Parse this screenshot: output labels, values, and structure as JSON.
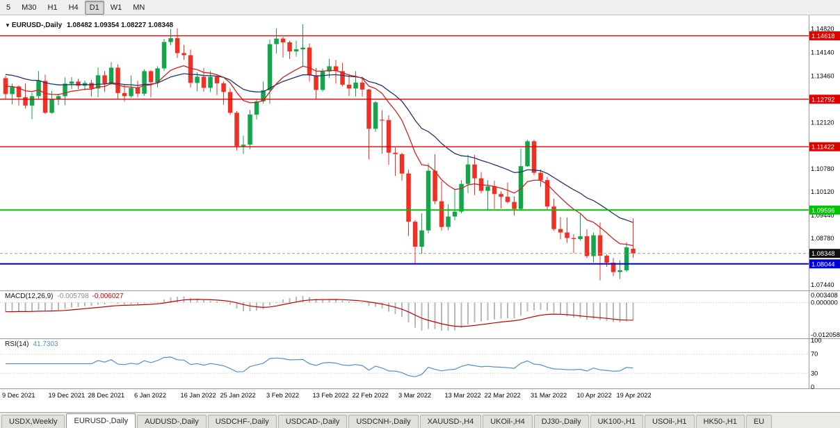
{
  "toolbar": {
    "timeframes": [
      "5",
      "M30",
      "H1",
      "H4",
      "D1",
      "W1",
      "MN"
    ],
    "active": "D1"
  },
  "chart": {
    "marker": "▼",
    "symbol_label": "EURUSD-,Daily",
    "ohlc_text": "1.08482 1.09354 1.08227 1.08348"
  },
  "chart_data": {
    "type": "candlestick",
    "symbol": "EURUSD",
    "timeframe": "Daily",
    "last_bar": {
      "open": 1.08482,
      "high": 1.09354,
      "low": 1.08227,
      "close": 1.08348
    },
    "price_scale": {
      "min": 1.073,
      "max": 1.1505
    },
    "y_axis_ticks": [
      {
        "value": 1.1482,
        "label": "1.14820"
      },
      {
        "value": 1.1414,
        "label": "1.14140"
      },
      {
        "value": 1.1346,
        "label": "1.13460"
      },
      {
        "value": 1.1212,
        "label": "1.12120"
      },
      {
        "value": 1.1078,
        "label": "1.10780"
      },
      {
        "value": 1.1012,
        "label": "1.10120"
      },
      {
        "value": 1.0944,
        "label": "1.09440"
      },
      {
        "value": 1.0878,
        "label": "1.08780"
      },
      {
        "value": 1.0744,
        "label": "1.07440"
      }
    ],
    "hlines": [
      {
        "price": 1.14618,
        "label": "1.14618",
        "color": "#e00000",
        "width": 1.4,
        "name": "resistance-line-1"
      },
      {
        "price": 1.12792,
        "label": "1.12792",
        "color": "#e00000",
        "width": 1.4,
        "name": "resistance-line-2"
      },
      {
        "price": 1.11422,
        "label": "1.11422",
        "color": "#e00000",
        "width": 1.4,
        "name": "resistance-line-3"
      },
      {
        "price": 1.09596,
        "label": "1.09596",
        "color": "#00c400",
        "width": 2,
        "name": "support-line-green"
      },
      {
        "price": 1.08044,
        "label": "1.08044",
        "color": "#0000dc",
        "width": 2,
        "name": "support-line-blue"
      }
    ],
    "current_price": {
      "value": 1.08348,
      "label": "1.08348",
      "badge_color": "#111111"
    },
    "x_axis_labels": [
      {
        "i": 0,
        "label": "9 Dec 2021"
      },
      {
        "i": 7,
        "label": "19 Dec 2021"
      },
      {
        "i": 13,
        "label": "28 Dec 2021"
      },
      {
        "i": 20,
        "label": "6 Jan 2022"
      },
      {
        "i": 27,
        "label": "16 Jan 2022"
      },
      {
        "i": 33,
        "label": "25 Jan 2022"
      },
      {
        "i": 40,
        "label": "3 Feb 2022"
      },
      {
        "i": 47,
        "label": "13 Feb 2022"
      },
      {
        "i": 53,
        "label": "22 Feb 2022"
      },
      {
        "i": 60,
        "label": "3 Mar 2022"
      },
      {
        "i": 67,
        "label": "13 Mar 2022"
      },
      {
        "i": 73,
        "label": "22 Mar 2022"
      },
      {
        "i": 80,
        "label": "31 Mar 2022"
      },
      {
        "i": 87,
        "label": "10 Apr 2022"
      },
      {
        "i": 93,
        "label": "19 Apr 2022"
      }
    ],
    "ma": {
      "fast": 12,
      "slow": 26,
      "fast_seed": 1.132,
      "slow_seed": 1.1355
    },
    "macd": {
      "label": "MACD(12,26,9)",
      "value_main": "-0.005798",
      "value_signal": "-0.006027",
      "axis": [
        {
          "value": 0.003408,
          "label": "0.003408"
        },
        {
          "value": 0,
          "label": "0.000000"
        },
        {
          "value": -0.012058,
          "label": "-0.012058"
        }
      ]
    },
    "rsi": {
      "label": "RSI(14)",
      "value": "41.7303",
      "axis": [
        {
          "value": 100,
          "label": "100"
        },
        {
          "value": 70,
          "label": "70"
        },
        {
          "value": 30,
          "label": "30"
        },
        {
          "value": 0,
          "label": "0"
        }
      ],
      "levels": [
        70,
        30
      ]
    },
    "colors": {
      "up": "#14a44a",
      "down": "#ee3124",
      "ma_fast": "#d02020",
      "ma_slow": "#1f3370",
      "macd_hist": "#b8b8b8",
      "macd_signal": "#c00000",
      "rsi": "#4f8fd0"
    },
    "candles": [
      [
        "2021-12-09",
        1.134,
        1.1347,
        1.1278,
        1.1294
      ],
      [
        "2021-12-10",
        1.1294,
        1.1324,
        1.1264,
        1.1316
      ],
      [
        "2021-12-13",
        1.1316,
        1.1319,
        1.126,
        1.1285
      ],
      [
        "2021-12-14",
        1.1285,
        1.1325,
        1.1252,
        1.1261
      ],
      [
        "2021-12-15",
        1.1261,
        1.1298,
        1.1222,
        1.1288
      ],
      [
        "2021-12-16",
        1.1288,
        1.136,
        1.128,
        1.1332
      ],
      [
        "2021-12-17",
        1.1332,
        1.135,
        1.1236,
        1.124
      ],
      [
        "2021-12-20",
        1.124,
        1.1303,
        1.1237,
        1.1278
      ],
      [
        "2021-12-21",
        1.1278,
        1.1295,
        1.1262,
        1.1288
      ],
      [
        "2021-12-22",
        1.1288,
        1.1342,
        1.1262,
        1.1324
      ],
      [
        "2021-12-23",
        1.1324,
        1.1343,
        1.1308,
        1.133
      ],
      [
        "2021-12-24",
        1.133,
        1.1338,
        1.1308,
        1.1318
      ],
      [
        "2021-12-27",
        1.1318,
        1.1333,
        1.1304,
        1.1326
      ],
      [
        "2021-12-28",
        1.1326,
        1.1335,
        1.1287,
        1.131
      ],
      [
        "2021-12-29",
        1.131,
        1.137,
        1.1285,
        1.1348
      ],
      [
        "2021-12-30",
        1.1348,
        1.136,
        1.13,
        1.1324
      ],
      [
        "2021-12-31",
        1.1324,
        1.1386,
        1.132,
        1.137
      ],
      [
        "2022-01-03",
        1.137,
        1.1379,
        1.1279,
        1.1297
      ],
      [
        "2022-01-04",
        1.1297,
        1.1323,
        1.1272,
        1.1288
      ],
      [
        "2022-01-05",
        1.1288,
        1.1347,
        1.1284,
        1.1312
      ],
      [
        "2022-01-06",
        1.1312,
        1.1332,
        1.1285,
        1.1295
      ],
      [
        "2022-01-07",
        1.1295,
        1.1365,
        1.1289,
        1.136
      ],
      [
        "2022-01-10",
        1.136,
        1.1363,
        1.1285,
        1.1328
      ],
      [
        "2022-01-11",
        1.1328,
        1.1374,
        1.1313,
        1.1368
      ],
      [
        "2022-01-12",
        1.1368,
        1.1453,
        1.136,
        1.1444
      ],
      [
        "2022-01-13",
        1.1444,
        1.1482,
        1.1435,
        1.1455
      ],
      [
        "2022-01-14",
        1.1455,
        1.1483,
        1.1398,
        1.1412
      ],
      [
        "2022-01-17",
        1.1412,
        1.1436,
        1.1392,
        1.1406
      ],
      [
        "2022-01-18",
        1.1406,
        1.1422,
        1.1313,
        1.1326
      ],
      [
        "2022-01-19",
        1.1326,
        1.1357,
        1.1302,
        1.1344
      ],
      [
        "2022-01-20",
        1.1344,
        1.1369,
        1.13,
        1.1312
      ],
      [
        "2022-01-21",
        1.1312,
        1.136,
        1.13,
        1.1344
      ],
      [
        "2022-01-24",
        1.1344,
        1.1349,
        1.1291,
        1.1325
      ],
      [
        "2022-01-25",
        1.1325,
        1.133,
        1.1263,
        1.13
      ],
      [
        "2022-01-26",
        1.13,
        1.131,
        1.1234,
        1.124
      ],
      [
        "2022-01-27",
        1.124,
        1.1245,
        1.1131,
        1.1144
      ],
      [
        "2022-01-28",
        1.1144,
        1.1174,
        1.1121,
        1.1148
      ],
      [
        "2022-01-31",
        1.1148,
        1.1248,
        1.1135,
        1.1235
      ],
      [
        "2022-02-01",
        1.1235,
        1.1279,
        1.1221,
        1.1273
      ],
      [
        "2022-02-02",
        1.1273,
        1.133,
        1.1267,
        1.1305
      ],
      [
        "2022-02-03",
        1.1305,
        1.1451,
        1.1266,
        1.1438
      ],
      [
        "2022-02-04",
        1.1438,
        1.1483,
        1.1411,
        1.1454
      ],
      [
        "2022-02-07",
        1.1454,
        1.1459,
        1.1399,
        1.1443
      ],
      [
        "2022-02-08",
        1.1443,
        1.1448,
        1.1395,
        1.1417
      ],
      [
        "2022-02-09",
        1.1417,
        1.1448,
        1.1402,
        1.1423
      ],
      [
        "2022-02-10",
        1.1423,
        1.1495,
        1.1375,
        1.1428
      ],
      [
        "2022-02-11",
        1.1428,
        1.144,
        1.133,
        1.1348
      ],
      [
        "2022-02-14",
        1.1348,
        1.1369,
        1.1278,
        1.1306
      ],
      [
        "2022-02-15",
        1.1306,
        1.1368,
        1.1301,
        1.1359
      ],
      [
        "2022-02-16",
        1.1359,
        1.1395,
        1.134,
        1.1374
      ],
      [
        "2022-02-17",
        1.1374,
        1.1392,
        1.1324,
        1.136
      ],
      [
        "2022-02-18",
        1.136,
        1.1384,
        1.1316,
        1.1321
      ],
      [
        "2022-02-21",
        1.1321,
        1.1352,
        1.1288,
        1.131
      ],
      [
        "2022-02-22",
        1.131,
        1.136,
        1.1287,
        1.1327
      ],
      [
        "2022-02-23",
        1.1327,
        1.1344,
        1.1287,
        1.1307
      ],
      [
        "2022-02-24",
        1.1307,
        1.1309,
        1.1106,
        1.1194
      ],
      [
        "2022-02-25",
        1.1194,
        1.1274,
        1.1185,
        1.127
      ],
      [
        "2022-02-28",
        1.122,
        1.1247,
        1.1122,
        1.1219
      ],
      [
        "2022-03-01",
        1.1219,
        1.1233,
        1.109,
        1.1125
      ],
      [
        "2022-03-02",
        1.1125,
        1.114,
        1.1058,
        1.1121
      ],
      [
        "2022-03-03",
        1.1121,
        1.1125,
        1.1045,
        1.1065
      ],
      [
        "2022-03-04",
        1.1065,
        1.1076,
        1.0885,
        1.0926
      ],
      [
        "2022-03-07",
        1.0926,
        1.0931,
        1.0806,
        1.0854
      ],
      [
        "2022-03-08",
        1.0854,
        1.095,
        1.0834,
        1.0901
      ],
      [
        "2022-03-09",
        1.0901,
        1.1095,
        1.0892,
        1.1073
      ],
      [
        "2022-03-10",
        1.1073,
        1.1121,
        1.0977,
        1.0985
      ],
      [
        "2022-03-11",
        1.0985,
        1.1043,
        1.0901,
        1.0911
      ],
      [
        "2022-03-14",
        1.0911,
        1.0976,
        1.0901,
        1.0941
      ],
      [
        "2022-03-15",
        1.0941,
        1.102,
        1.093,
        1.0955
      ],
      [
        "2022-03-16",
        1.0955,
        1.1046,
        1.095,
        1.1035
      ],
      [
        "2022-03-17",
        1.1035,
        1.1119,
        1.1009,
        1.1091
      ],
      [
        "2022-03-18",
        1.1091,
        1.1119,
        1.1003,
        1.1051
      ],
      [
        "2022-03-21",
        1.1051,
        1.1069,
        1.1008,
        1.1015
      ],
      [
        "2022-03-22",
        1.1015,
        1.1046,
        1.0961,
        1.1028
      ],
      [
        "2022-03-23",
        1.1028,
        1.1044,
        1.0963,
        1.1006
      ],
      [
        "2022-03-24",
        1.1006,
        1.1014,
        1.0964,
        1.0998
      ],
      [
        "2022-03-25",
        1.0998,
        1.1039,
        1.0979,
        1.0983
      ],
      [
        "2022-03-28",
        1.0983,
        1.0999,
        1.0944,
        1.0963
      ],
      [
        "2022-03-29",
        1.0963,
        1.1137,
        1.0961,
        1.1086
      ],
      [
        "2022-03-30",
        1.1086,
        1.1162,
        1.1084,
        1.1158
      ],
      [
        "2022-03-31",
        1.1158,
        1.1162,
        1.106,
        1.1067
      ],
      [
        "2022-04-01",
        1.1067,
        1.1077,
        1.1027,
        1.1046
      ],
      [
        "2022-04-04",
        1.1046,
        1.1055,
        1.096,
        1.097
      ],
      [
        "2022-04-05",
        1.097,
        1.0992,
        1.09,
        1.0905
      ],
      [
        "2022-04-06",
        1.0905,
        1.0939,
        1.0875,
        1.0895
      ],
      [
        "2022-04-07",
        1.0895,
        1.0938,
        1.0865,
        1.0879
      ],
      [
        "2022-04-08",
        1.0879,
        1.089,
        1.0836,
        1.0876
      ],
      [
        "2022-04-11",
        1.0876,
        1.095,
        1.0872,
        1.0884
      ],
      [
        "2022-04-12",
        1.0884,
        1.0904,
        1.0821,
        1.0827
      ],
      [
        "2022-04-13",
        1.0827,
        1.0895,
        1.0809,
        1.0887
      ],
      [
        "2022-04-14",
        1.0887,
        1.0924,
        1.0757,
        1.0828
      ],
      [
        "2022-04-15",
        1.0828,
        1.0832,
        1.0796,
        1.0808
      ],
      [
        "2022-04-18",
        1.0808,
        1.0822,
        1.0769,
        1.0781
      ],
      [
        "2022-04-19",
        1.0781,
        1.0815,
        1.0761,
        1.0786
      ],
      [
        "2022-04-20",
        1.0786,
        1.0867,
        1.0782,
        1.0852
      ],
      [
        "2022-04-21",
        1.08482,
        1.09354,
        1.08227,
        1.08348
      ]
    ]
  },
  "tabs": [
    {
      "label": "USDX,Weekly",
      "active": false
    },
    {
      "label": "EURUSD-,Daily",
      "active": true
    },
    {
      "label": "AUDUSD-,Daily",
      "active": false
    },
    {
      "label": "USDCHF-,Daily",
      "active": false
    },
    {
      "label": "USDCAD-,Daily",
      "active": false
    },
    {
      "label": "USDCNH-,Daily",
      "active": false
    },
    {
      "label": "XAUUSD-,H4",
      "active": false
    },
    {
      "label": "UKOil-,H4",
      "active": false
    },
    {
      "label": "DJ30-,Daily",
      "active": false
    },
    {
      "label": "UK100-,H1",
      "active": false
    },
    {
      "label": "USOil-,H1",
      "active": false
    },
    {
      "label": "HK50-,H1",
      "active": false
    },
    {
      "label": "EU",
      "active": false
    }
  ]
}
